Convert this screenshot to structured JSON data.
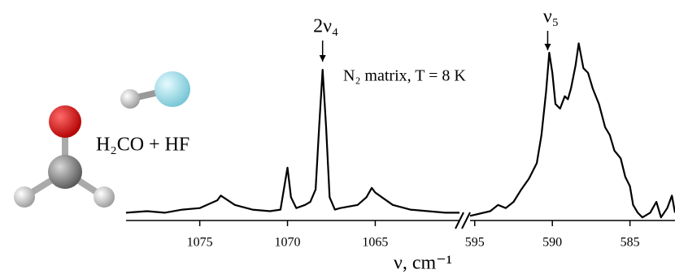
{
  "chart_data": [
    {
      "type": "line",
      "color": "#000000",
      "xlabel": "ν, cm⁻¹",
      "xlim": [
        1079.2,
        1060.2
      ],
      "ylim": [
        0,
        120
      ],
      "xticks": [
        1075,
        1070,
        1065
      ],
      "x": [
        1079.2,
        1078,
        1077,
        1076,
        1075,
        1074,
        1073.8,
        1073,
        1072,
        1071,
        1070.4,
        1070.0,
        1069.8,
        1069.5,
        1069,
        1068.7,
        1068.4,
        1068.2,
        1068.0,
        1067.8,
        1067.6,
        1067.3,
        1067,
        1066,
        1065.5,
        1065.2,
        1065,
        1064.5,
        1064,
        1063,
        1062,
        1061,
        1060.2
      ],
      "values": [
        5,
        6,
        5,
        7,
        8,
        13,
        16,
        10,
        7,
        6,
        7,
        34,
        15,
        8,
        10,
        12,
        20,
        60,
        97,
        60,
        15,
        7,
        8,
        10,
        15,
        21,
        18,
        14,
        10,
        7,
        6,
        5,
        5
      ],
      "annotations": [
        {
          "text": "2ν₄",
          "x": 1068.0
        }
      ]
    },
    {
      "type": "line",
      "color": "#000000",
      "xlim": [
        595.3,
        582.1
      ],
      "ylim": [
        0,
        120
      ],
      "xticks": [
        595,
        590,
        585
      ],
      "x": [
        595.3,
        594,
        593.5,
        593,
        592.5,
        592,
        591.5,
        591,
        590.7,
        590.4,
        590.2,
        590,
        589.8,
        589.5,
        589.2,
        589,
        588.8,
        588.5,
        588.3,
        588,
        587.7,
        587.4,
        587,
        586.6,
        586.3,
        586,
        585.6,
        585.3,
        585,
        584.8,
        584.5,
        584.2,
        583.7,
        583.3,
        583,
        582.6,
        582.3,
        582.1
      ],
      "values": [
        3,
        6,
        10,
        8,
        12,
        20,
        27,
        37,
        55,
        83,
        108,
        95,
        75,
        72,
        80,
        78,
        85,
        100,
        114,
        98,
        95,
        85,
        75,
        60,
        55,
        45,
        40,
        28,
        22,
        10,
        5,
        2,
        5,
        12,
        2,
        8,
        16,
        5
      ],
      "annotations": [
        {
          "text": "ν₅",
          "x": 590.3
        }
      ]
    }
  ],
  "note": "N₂ matrix, T = 8 K",
  "molecule_label": "H₂CO + HF"
}
